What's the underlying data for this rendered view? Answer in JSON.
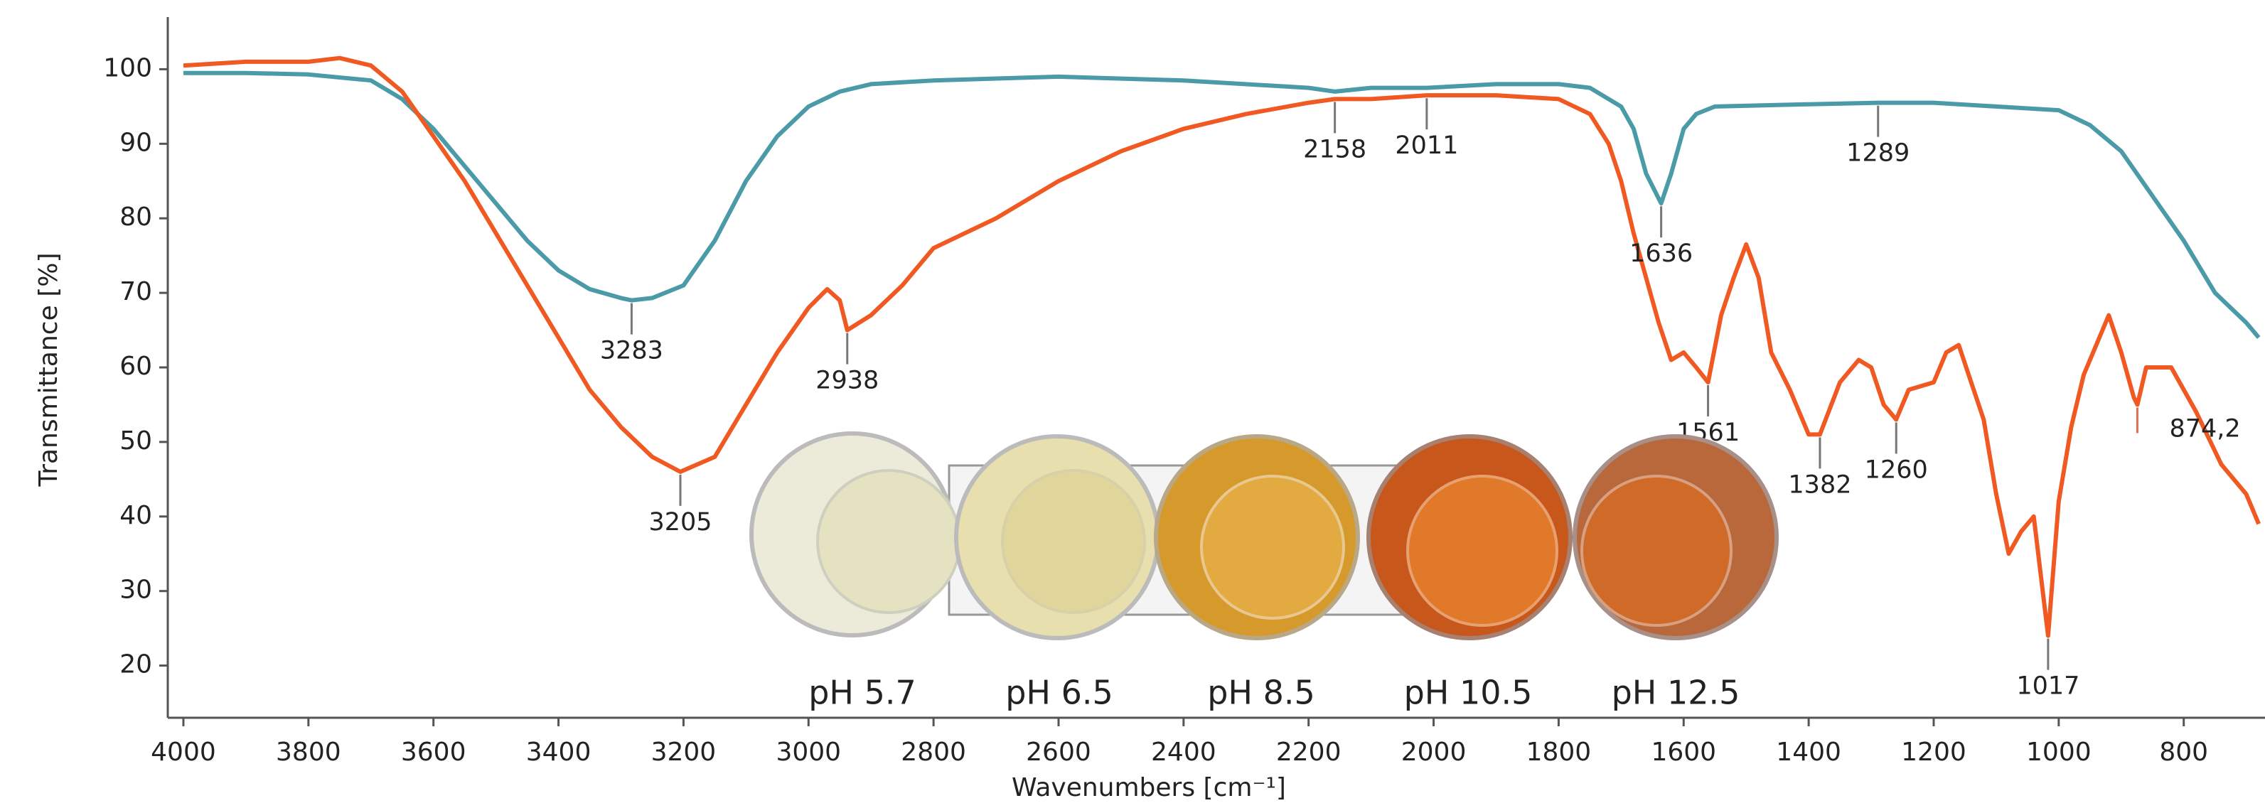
{
  "chart_data": {
    "type": "line",
    "xlabel": "Wavenumbers [cm⁻¹]",
    "ylabel": "Transmittance [%]",
    "xlim": [
      4025,
      670
    ],
    "ylim": [
      13,
      107
    ],
    "xticks": [
      4000,
      3800,
      3600,
      3400,
      3200,
      3000,
      2800,
      2600,
      2400,
      2200,
      2000,
      1800,
      1600,
      1400,
      1200,
      1000,
      800
    ],
    "yticks": [
      20,
      30,
      40,
      50,
      60,
      70,
      80,
      90,
      100
    ],
    "grid": false,
    "series": [
      {
        "color": "#4a9aa8",
        "x": [
          4000,
          3900,
          3800,
          3700,
          3650,
          3600,
          3550,
          3500,
          3450,
          3400,
          3350,
          3300,
          3283,
          3250,
          3200,
          3150,
          3100,
          3050,
          3000,
          2950,
          2900,
          2800,
          2600,
          2400,
          2200,
          2158,
          2100,
          2011,
          1900,
          1800,
          1750,
          1700,
          1680,
          1660,
          1636,
          1620,
          1600,
          1580,
          1550,
          1400,
          1289,
          1200,
          1100,
          1000,
          950,
          900,
          850,
          800,
          750,
          700,
          680
        ],
        "values": [
          99.5,
          99.5,
          99.3,
          98.5,
          96,
          92,
          87,
          82,
          77,
          73,
          70.5,
          69.3,
          69,
          69.3,
          71,
          77,
          85,
          91,
          95,
          97,
          98,
          98.5,
          99,
          98.5,
          97.5,
          97,
          97.5,
          97.5,
          98,
          98,
          97.5,
          95,
          92,
          86,
          82,
          86,
          92,
          94,
          95,
          95.3,
          95.5,
          95.5,
          95,
          94.5,
          92.5,
          89,
          83,
          77,
          70,
          66,
          64
        ]
      },
      {
        "color": "#f05a22",
        "x": [
          4000,
          3900,
          3800,
          3750,
          3700,
          3650,
          3600,
          3550,
          3500,
          3450,
          3400,
          3350,
          3300,
          3250,
          3205,
          3150,
          3100,
          3050,
          3000,
          2970,
          2950,
          2938,
          2900,
          2850,
          2800,
          2700,
          2600,
          2500,
          2400,
          2300,
          2200,
          2158,
          2100,
          2011,
          1900,
          1800,
          1750,
          1720,
          1700,
          1680,
          1660,
          1640,
          1620,
          1600,
          1580,
          1561,
          1540,
          1520,
          1500,
          1480,
          1460,
          1430,
          1400,
          1382,
          1350,
          1320,
          1300,
          1280,
          1260,
          1240,
          1200,
          1180,
          1160,
          1140,
          1120,
          1100,
          1080,
          1060,
          1040,
          1017,
          1000,
          980,
          960,
          920,
          900,
          880,
          874.2,
          860,
          820,
          780,
          740,
          700,
          680
        ],
        "values": [
          100.5,
          101,
          101,
          101.5,
          100.5,
          97,
          91,
          85,
          78,
          71,
          64,
          57,
          52,
          48,
          46,
          48,
          55,
          62,
          68,
          70.5,
          69,
          65,
          67,
          71,
          76,
          80,
          85,
          89,
          92,
          94,
          95.5,
          96,
          96,
          96.5,
          96.5,
          96,
          94,
          90,
          85,
          78,
          72,
          66,
          61,
          62,
          60,
          58,
          67,
          72,
          76.5,
          72,
          62,
          57,
          51,
          51,
          58,
          61,
          60,
          55,
          53,
          57,
          58,
          62,
          63,
          58,
          53,
          43,
          35,
          38,
          40,
          24,
          42,
          52,
          59,
          67,
          62,
          56,
          55,
          60,
          60,
          54,
          47,
          43,
          39
        ]
      }
    ],
    "annotations": [
      {
        "text": "3283",
        "x": 3283,
        "y": 69
      },
      {
        "text": "3205",
        "x": 3205,
        "y": 46
      },
      {
        "text": "2938",
        "x": 2938,
        "y": 65
      },
      {
        "text": "2158",
        "x": 2158,
        "y": 96
      },
      {
        "text": "2011",
        "x": 2011,
        "y": 96.5
      },
      {
        "text": "1636",
        "x": 1636,
        "y": 82
      },
      {
        "text": "1289",
        "x": 1289,
        "y": 95.5
      },
      {
        "text": "1561",
        "x": 1561,
        "y": 58
      },
      {
        "text": "1382",
        "x": 1382,
        "y": 51
      },
      {
        "text": "1260",
        "x": 1260,
        "y": 53
      },
      {
        "text": "1017",
        "x": 1017,
        "y": 24
      },
      {
        "text": "874,2",
        "x": 874.2,
        "y": 55
      }
    ],
    "photo_labels": [
      "pH 5.7",
      "pH 6.5",
      "pH 8.5",
      "pH 10.5",
      "pH 12.5"
    ]
  }
}
